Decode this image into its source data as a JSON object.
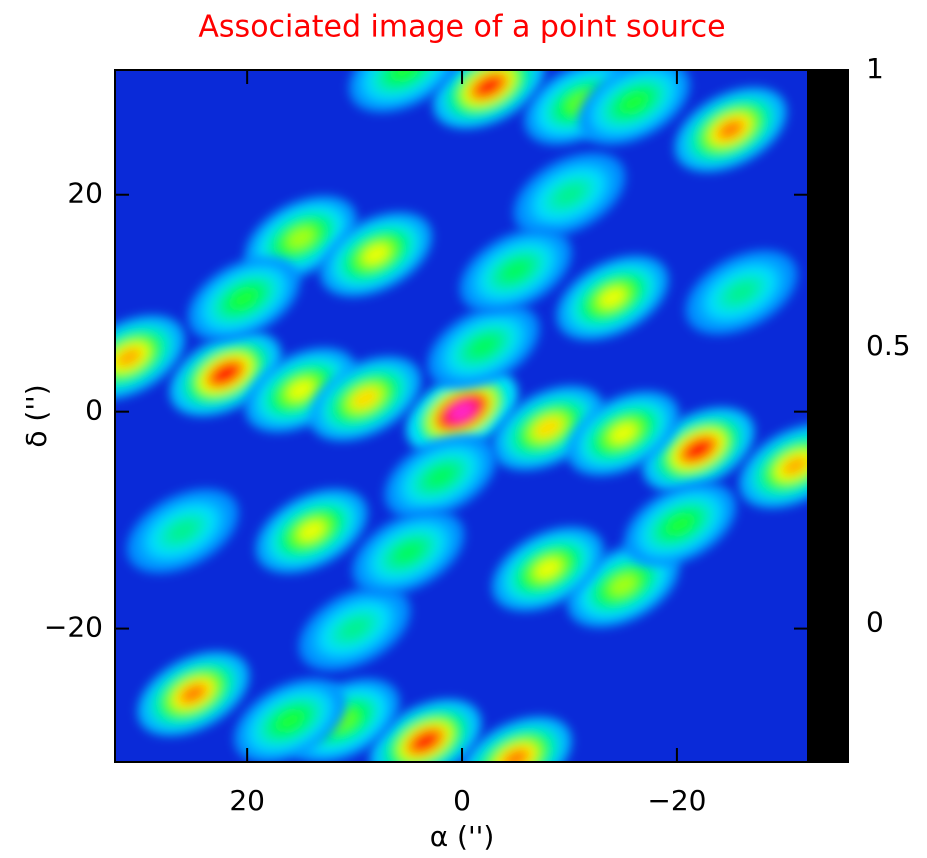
{
  "chart_data": {
    "type": "scatter",
    "title": "Associated image of a point source",
    "title_color": "#ff0000",
    "x_label": "α ('')",
    "y_label": "δ ('')",
    "xlim": [
      32.3,
      -32.2
    ],
    "ylim": [
      -32.3,
      31.5
    ],
    "xticks": [
      20,
      0,
      {
        "value": -20,
        "label": "−20"
      }
    ],
    "yticks": [
      20,
      0,
      {
        "value": -20,
        "label": "−20"
      }
    ],
    "clim": [
      -0.25,
      1
    ],
    "cticks": [
      1,
      0.5,
      0
    ],
    "colormap": [
      {
        "value": -0.25,
        "color": "#000000"
      },
      {
        "value": -0.12,
        "color": "#0010c0"
      },
      {
        "value": 0,
        "color": "#0060ff"
      },
      {
        "value": 0.1,
        "color": "#00e0ff"
      },
      {
        "value": 0.27,
        "color": "#00ff40"
      },
      {
        "value": 0.43,
        "color": "#ffff00"
      },
      {
        "value": 0.55,
        "color": "#ff8000"
      },
      {
        "value": 0.68,
        "color": "#ff0000"
      },
      {
        "value": 0.88,
        "color": "#ff00c0"
      },
      {
        "value": 1,
        "color": "#ffffff"
      }
    ],
    "x": [
      0,
      22,
      -22,
      -2.5,
      3.4,
      -25,
      25,
      15,
      9,
      -8,
      -15,
      31,
      -31,
      15,
      8,
      -15,
      -8,
      -14,
      14,
      -11,
      -16,
      11,
      16,
      -2,
      2,
      -5,
      5.3,
      -10,
      10,
      -5,
      5,
      -20.3,
      20.3,
      -26,
      26
    ],
    "y": [
      0,
      3.5,
      -3.5,
      30,
      -30.4,
      26,
      -26,
      2,
      1.2,
      -1.5,
      -2,
      5,
      -5,
      16,
      14.5,
      -16,
      -14.5,
      10.5,
      -11,
      28.5,
      28.5,
      -28.5,
      -28.5,
      6,
      -6,
      -32,
      31.5,
      20,
      -20,
      13,
      -13,
      -10.4,
      10.4,
      11,
      -11
    ],
    "values": [
      1,
      0.72,
      0.72,
      0.7,
      0.7,
      0.6,
      0.6,
      0.45,
      0.5,
      0.5,
      0.45,
      0.55,
      0.55,
      0.4,
      0.45,
      0.4,
      0.45,
      0.45,
      0.45,
      0.35,
      0.3,
      0.35,
      0.3,
      0.25,
      0.25,
      0.6,
      0.3,
      0.2,
      0.2,
      0.25,
      0.25,
      0.3,
      0.3,
      0.2,
      0.2
    ]
  }
}
